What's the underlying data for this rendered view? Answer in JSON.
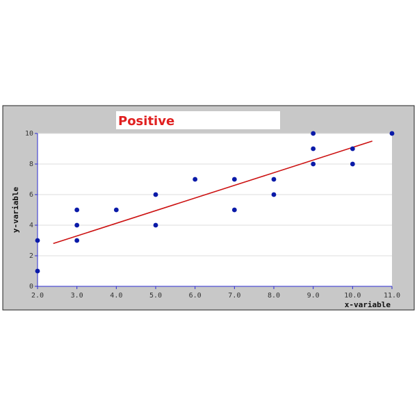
{
  "chart_data": {
    "type": "scatter",
    "title": "Positive",
    "xlabel": "x-variable",
    "ylabel": "y-variable",
    "xlim": [
      2,
      11
    ],
    "ylim": [
      0,
      10
    ],
    "x_ticks": [
      "2.0",
      "3.0",
      "4.0",
      "5.0",
      "6.0",
      "7.0",
      "8.0",
      "9.0",
      "10.0",
      "11.0"
    ],
    "y_ticks": [
      "0",
      "2",
      "4",
      "6",
      "8",
      "10"
    ],
    "grid": true,
    "points": [
      {
        "x": 2,
        "y": 1
      },
      {
        "x": 2,
        "y": 3
      },
      {
        "x": 3,
        "y": 3
      },
      {
        "x": 3,
        "y": 4
      },
      {
        "x": 3,
        "y": 5
      },
      {
        "x": 4,
        "y": 5
      },
      {
        "x": 5,
        "y": 4
      },
      {
        "x": 5,
        "y": 6
      },
      {
        "x": 6,
        "y": 7
      },
      {
        "x": 7,
        "y": 5
      },
      {
        "x": 7,
        "y": 7
      },
      {
        "x": 8,
        "y": 6
      },
      {
        "x": 8,
        "y": 7
      },
      {
        "x": 9,
        "y": 8
      },
      {
        "x": 9,
        "y": 9
      },
      {
        "x": 9,
        "y": 10
      },
      {
        "x": 10,
        "y": 8
      },
      {
        "x": 10,
        "y": 9
      },
      {
        "x": 11,
        "y": 10
      }
    ],
    "trendline": {
      "x": [
        2.4,
        10.5
      ],
      "y": [
        2.8,
        9.5
      ]
    },
    "colors": {
      "points": "#0a1aa8",
      "trendline": "#cc1111",
      "title": "#e02020",
      "axis": "#2a2ad0",
      "frame_bg": "#c8c8c8",
      "plot_bg": "#ffffff",
      "grid": "#dcdcdc"
    }
  }
}
